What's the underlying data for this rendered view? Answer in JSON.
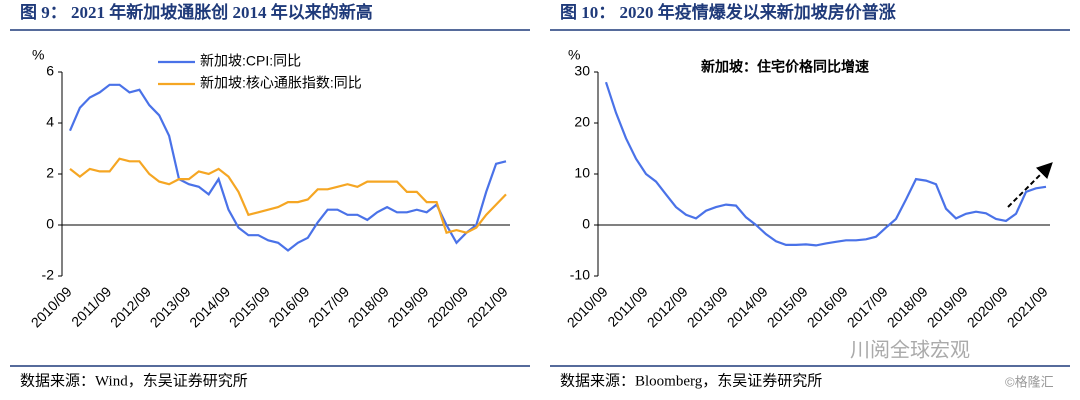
{
  "chart_data": [
    {
      "type": "line",
      "title": "图 9：  2021 年新加坡通胀创 2014 年以来的新高",
      "source": "数据来源：Wind，东吴证券研究所",
      "y_label": "%",
      "categories": [
        "2010/09",
        null,
        null,
        null,
        "2011/09",
        null,
        null,
        null,
        "2012/09",
        null,
        null,
        null,
        "2013/09",
        null,
        null,
        null,
        "2014/09",
        null,
        null,
        null,
        "2015/09",
        null,
        null,
        null,
        "2016/09",
        null,
        null,
        null,
        "2017/09",
        null,
        null,
        null,
        "2018/09",
        null,
        null,
        null,
        "2019/09",
        null,
        null,
        null,
        "2020/09",
        null,
        null,
        null,
        "2021/09"
      ],
      "series": [
        {
          "name": "新加坡:CPI:同比",
          "color": "#4a72e8",
          "values": [
            3.7,
            4.6,
            5.0,
            5.2,
            5.5,
            5.5,
            5.2,
            5.3,
            4.7,
            4.3,
            3.5,
            1.8,
            1.6,
            1.5,
            1.2,
            1.8,
            0.6,
            -0.1,
            -0.4,
            -0.4,
            -0.6,
            -0.7,
            -1.0,
            -0.7,
            -0.5,
            0.1,
            0.6,
            0.6,
            0.4,
            0.4,
            0.2,
            0.5,
            0.7,
            0.5,
            0.5,
            0.6,
            0.5,
            0.8,
            0.0,
            -0.7,
            -0.3,
            0.0,
            1.3,
            2.4,
            2.5
          ]
        },
        {
          "name": "新加坡:核心通胀指数:同比",
          "color": "#f5a623",
          "values": [
            2.2,
            1.9,
            2.2,
            2.1,
            2.1,
            2.6,
            2.5,
            2.5,
            2.0,
            1.7,
            1.6,
            1.8,
            1.8,
            2.1,
            2.0,
            2.2,
            1.9,
            1.3,
            0.4,
            0.5,
            0.6,
            0.7,
            0.9,
            0.9,
            1.0,
            1.4,
            1.4,
            1.5,
            1.6,
            1.5,
            1.7,
            1.7,
            1.7,
            1.7,
            1.3,
            1.3,
            0.9,
            0.9,
            -0.3,
            -0.2,
            -0.3,
            -0.1,
            0.4,
            0.8,
            1.2
          ]
        }
      ],
      "ylim": [
        -2,
        6
      ],
      "yticks": [
        -2,
        0,
        2,
        4,
        6
      ]
    },
    {
      "type": "line",
      "title": "图 10：  2020 年疫情爆发以来新加坡房价普涨",
      "source": "数据来源：Bloomberg，东吴证券研究所",
      "y_label": "%",
      "annotation": "新加坡：住宅价格同比增速",
      "color": "#4a72e8",
      "categories": [
        "2010/09",
        null,
        null,
        null,
        "2011/09",
        null,
        null,
        null,
        "2012/09",
        null,
        null,
        null,
        "2013/09",
        null,
        null,
        null,
        "2014/09",
        null,
        null,
        null,
        "2015/09",
        null,
        null,
        null,
        "2016/09",
        null,
        null,
        null,
        "2017/09",
        null,
        null,
        null,
        "2018/09",
        null,
        null,
        null,
        "2019/09",
        null,
        null,
        null,
        "2020/09",
        null,
        null,
        null,
        "2021/09"
      ],
      "values": [
        28,
        22,
        17,
        13,
        10,
        8.5,
        6,
        3.5,
        2,
        1.3,
        2.8,
        3.5,
        4,
        3.8,
        1.5,
        0,
        -1.8,
        -3.2,
        -3.9,
        -3.9,
        -3.8,
        -4,
        -3.6,
        -3.3,
        -3,
        -3,
        -2.8,
        -2.3,
        -0.5,
        1.2,
        5,
        9,
        8.7,
        8,
        3.2,
        1.3,
        2.2,
        2.6,
        2.3,
        1.2,
        0.8,
        2.2,
        6.5,
        7.2,
        7.5
      ],
      "ylim": [
        -10,
        30
      ],
      "yticks": [
        -10,
        0,
        10,
        20,
        30
      ]
    }
  ],
  "watermark": [
    "川阅全球宏观",
    "©格隆汇"
  ]
}
